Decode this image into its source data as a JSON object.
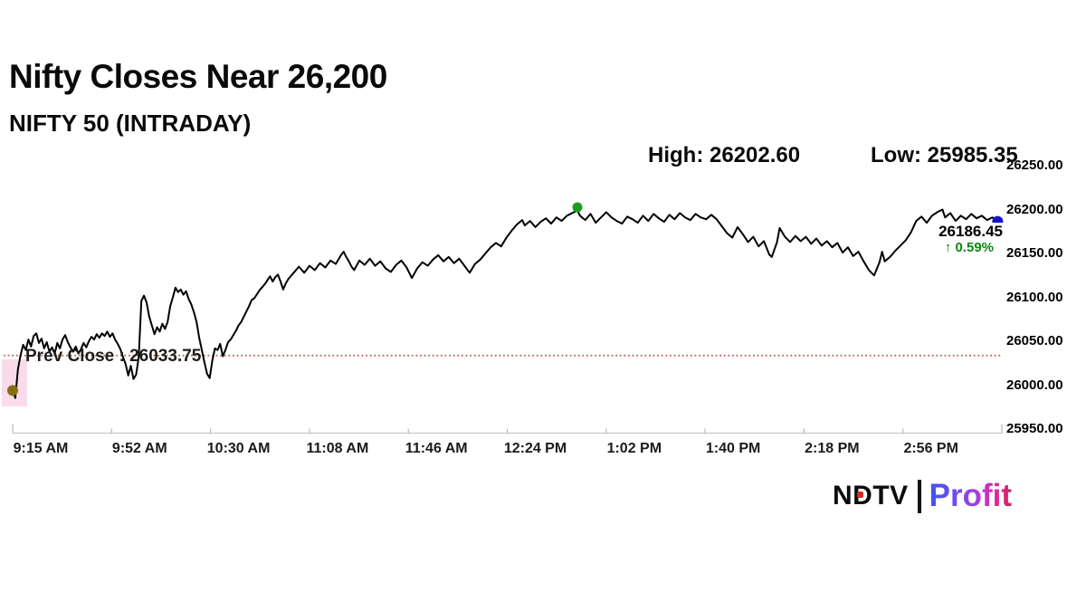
{
  "title": "Nifty Closes Near 26,200",
  "subtitle": "NIFTY 50 (INTRADAY)",
  "stats": {
    "high_label": "High: 26202.60",
    "low_label": "Low: 25985.35"
  },
  "prev_close_label": "Prev Close : 26033.75",
  "last_trade": {
    "price_label": "26186.45",
    "change_label": "↑ 0.59%"
  },
  "logo": {
    "ndtv": "NDTV",
    "profit": "Profit"
  },
  "colors": {
    "line": "#000000",
    "prev_close_line": "#b85f4a",
    "prev_close_text": "#1d1d1d",
    "high_dot": "#1e9c1e",
    "start_dot": "#85700f",
    "end_dot": "#1414cc",
    "change_text": "#0a8a0a",
    "axis": "#c9c9c9",
    "tick": "#b9b9b9",
    "start_highlight": "#f6b8d4",
    "logo_red": "#cf2e21",
    "profit_gradient": [
      "#3d56ee",
      "#7a4af0",
      "#b13ae0",
      "#e8238f",
      "#c22766"
    ]
  },
  "chart_data": {
    "type": "line",
    "title": "NIFTY 50 (INTRADAY)",
    "xlabel": "",
    "ylabel": "",
    "x_unit": "minutes since 9:15 AM",
    "x_tick_labels": [
      "9:15 AM",
      "9:52 AM",
      "10:30 AM",
      "11:08 AM",
      "11:46 AM",
      "12:24 PM",
      "1:02 PM",
      "1:40 PM",
      "2:18 PM",
      "2:56 PM"
    ],
    "y_ticks": [
      26250,
      26200,
      26150,
      26100,
      26050,
      26000,
      25950
    ],
    "y_tick_labels": [
      "26250.00",
      "26200.00",
      "26150.00",
      "26100.00",
      "26050.00",
      "26000.00",
      "25950.00"
    ],
    "ylim": [
      25950,
      26250
    ],
    "xlim_minutes": [
      0,
      376.6
    ],
    "grid": false,
    "legend": false,
    "high": 26202.6,
    "low": 25985.35,
    "prev_close": 26033.75,
    "close": 26186.45,
    "change_pct": 0.59,
    "markers": {
      "start": {
        "min": 0,
        "price": 25994
      },
      "high": {
        "min": 215,
        "price": 26202.6
      },
      "end": {
        "min": 375,
        "price": 26186.45
      }
    },
    "series": [
      {
        "name": "NIFTY 50",
        "points": [
          [
            0,
            25994
          ],
          [
            1,
            25985.35
          ],
          [
            2,
            26018
          ],
          [
            3,
            26034
          ],
          [
            4,
            26046
          ],
          [
            5,
            26040
          ],
          [
            6,
            26052
          ],
          [
            7,
            26044
          ],
          [
            8,
            26056
          ],
          [
            9,
            26059
          ],
          [
            10,
            26048
          ],
          [
            11,
            26053
          ],
          [
            12,
            26042
          ],
          [
            13,
            26049
          ],
          [
            14,
            26038
          ],
          [
            15,
            26043
          ],
          [
            16,
            26036
          ],
          [
            17,
            26048
          ],
          [
            18,
            26042
          ],
          [
            19,
            26052
          ],
          [
            20,
            26057
          ],
          [
            21,
            26049
          ],
          [
            22,
            26043
          ],
          [
            23,
            26038
          ],
          [
            24,
            26044
          ],
          [
            25,
            26036
          ],
          [
            26,
            26041
          ],
          [
            27,
            26048
          ],
          [
            28,
            26043
          ],
          [
            29,
            26050
          ],
          [
            30,
            26055
          ],
          [
            31,
            26052
          ],
          [
            32,
            26058
          ],
          [
            33,
            26054
          ],
          [
            34,
            26059
          ],
          [
            35,
            26056
          ],
          [
            36,
            26061
          ],
          [
            37,
            26055
          ],
          [
            38,
            26059
          ],
          [
            39,
            26052
          ],
          [
            40,
            26047
          ],
          [
            41,
            26041
          ],
          [
            42,
            26032
          ],
          [
            43,
            26024
          ],
          [
            44,
            26011
          ],
          [
            45,
            26022
          ],
          [
            46,
            26007
          ],
          [
            47,
            26012
          ],
          [
            48,
            26032
          ],
          [
            49,
            26096
          ],
          [
            50,
            26102
          ],
          [
            51,
            26094
          ],
          [
            52,
            26078
          ],
          [
            53,
            26068
          ],
          [
            54,
            26058
          ],
          [
            55,
            26066
          ],
          [
            56,
            26061
          ],
          [
            57,
            26070
          ],
          [
            58,
            26064
          ],
          [
            59,
            26072
          ],
          [
            60,
            26090
          ],
          [
            61,
            26100
          ],
          [
            62,
            26111
          ],
          [
            63,
            26106
          ],
          [
            64,
            26109
          ],
          [
            65,
            26103
          ],
          [
            66,
            26107
          ],
          [
            67,
            26098
          ],
          [
            68,
            26092
          ],
          [
            69,
            26083
          ],
          [
            70,
            26072
          ],
          [
            71,
            26054
          ],
          [
            72,
            26040
          ],
          [
            73,
            26026
          ],
          [
            74,
            26013
          ],
          [
            75,
            26008
          ],
          [
            76,
            26028
          ],
          [
            77,
            26042
          ],
          [
            78,
            26040
          ],
          [
            79,
            26047
          ],
          [
            80,
            26033
          ],
          [
            81,
            26040
          ],
          [
            82,
            26049
          ],
          [
            83,
            26052
          ],
          [
            84,
            26057
          ],
          [
            85,
            26062
          ],
          [
            86,
            26068
          ],
          [
            87,
            26072
          ],
          [
            88,
            26078
          ],
          [
            89,
            26084
          ],
          [
            90,
            26090
          ],
          [
            91,
            26097
          ],
          [
            92,
            26099
          ],
          [
            94,
            26108
          ],
          [
            96,
            26115
          ],
          [
            98,
            26124
          ],
          [
            99,
            26118
          ],
          [
            100,
            26123
          ],
          [
            101,
            26126
          ],
          [
            102,
            26118
          ],
          [
            103,
            26109
          ],
          [
            104,
            26116
          ],
          [
            105,
            26121
          ],
          [
            107,
            26128
          ],
          [
            109,
            26135
          ],
          [
            111,
            26128
          ],
          [
            113,
            26136
          ],
          [
            115,
            26131
          ],
          [
            117,
            26139
          ],
          [
            119,
            26134
          ],
          [
            121,
            26142
          ],
          [
            123,
            26138
          ],
          [
            125,
            26148
          ],
          [
            126,
            26152
          ],
          [
            127,
            26146
          ],
          [
            128,
            26141
          ],
          [
            129,
            26135
          ],
          [
            130,
            26131
          ],
          [
            132,
            26142
          ],
          [
            134,
            26137
          ],
          [
            136,
            26144
          ],
          [
            138,
            26136
          ],
          [
            140,
            26141
          ],
          [
            142,
            26133
          ],
          [
            144,
            26129
          ],
          [
            146,
            26137
          ],
          [
            148,
            26142
          ],
          [
            150,
            26134
          ],
          [
            152,
            26122
          ],
          [
            154,
            26133
          ],
          [
            156,
            26140
          ],
          [
            158,
            26136
          ],
          [
            160,
            26143
          ],
          [
            162,
            26148
          ],
          [
            164,
            26141
          ],
          [
            166,
            26146
          ],
          [
            168,
            26139
          ],
          [
            170,
            26144
          ],
          [
            172,
            26136
          ],
          [
            174,
            26128
          ],
          [
            176,
            26138
          ],
          [
            178,
            26143
          ],
          [
            180,
            26150
          ],
          [
            182,
            26157
          ],
          [
            184,
            26162
          ],
          [
            186,
            26158
          ],
          [
            188,
            26168
          ],
          [
            190,
            26176
          ],
          [
            192,
            26183
          ],
          [
            194,
            26188
          ],
          [
            195,
            26182
          ],
          [
            197,
            26187
          ],
          [
            199,
            26180
          ],
          [
            201,
            26186
          ],
          [
            203,
            26190
          ],
          [
            205,
            26184
          ],
          [
            207,
            26191
          ],
          [
            209,
            26187
          ],
          [
            211,
            26193
          ],
          [
            213,
            26196
          ],
          [
            215,
            26199
          ],
          [
            216,
            26193
          ],
          [
            218,
            26188
          ],
          [
            220,
            26195
          ],
          [
            222,
            26185
          ],
          [
            224,
            26191
          ],
          [
            226,
            26197
          ],
          [
            228,
            26191
          ],
          [
            230,
            26187
          ],
          [
            232,
            26184
          ],
          [
            234,
            26192
          ],
          [
            236,
            26189
          ],
          [
            238,
            26185
          ],
          [
            240,
            26193
          ],
          [
            242,
            26187
          ],
          [
            244,
            26195
          ],
          [
            246,
            26190
          ],
          [
            248,
            26186
          ],
          [
            250,
            26194
          ],
          [
            252,
            26189
          ],
          [
            254,
            26196
          ],
          [
            256,
            26191
          ],
          [
            258,
            26188
          ],
          [
            260,
            26195
          ],
          [
            262,
            26191
          ],
          [
            264,
            26189
          ],
          [
            266,
            26194
          ],
          [
            268,
            26189
          ],
          [
            270,
            26181
          ],
          [
            272,
            26173
          ],
          [
            274,
            26168
          ],
          [
            276,
            26180
          ],
          [
            278,
            26172
          ],
          [
            280,
            26163
          ],
          [
            282,
            26169
          ],
          [
            284,
            26158
          ],
          [
            286,
            26164
          ],
          [
            288,
            26149
          ],
          [
            289,
            26146
          ],
          [
            291,
            26163
          ],
          [
            292,
            26179
          ],
          [
            294,
            26169
          ],
          [
            296,
            26163
          ],
          [
            298,
            26170
          ],
          [
            300,
            26164
          ],
          [
            302,
            26169
          ],
          [
            304,
            26161
          ],
          [
            306,
            26167
          ],
          [
            308,
            26159
          ],
          [
            310,
            26164
          ],
          [
            312,
            26157
          ],
          [
            314,
            26162
          ],
          [
            316,
            26151
          ],
          [
            318,
            26157
          ],
          [
            320,
            26147
          ],
          [
            322,
            26152
          ],
          [
            324,
            26141
          ],
          [
            326,
            26131
          ],
          [
            328,
            26125
          ],
          [
            330,
            26140
          ],
          [
            331,
            26152
          ],
          [
            332,
            26141
          ],
          [
            334,
            26146
          ],
          [
            336,
            26153
          ],
          [
            338,
            26159
          ],
          [
            340,
            26165
          ],
          [
            342,
            26174
          ],
          [
            344,
            26187
          ],
          [
            346,
            26192
          ],
          [
            348,
            26185
          ],
          [
            350,
            26193
          ],
          [
            352,
            26197
          ],
          [
            354,
            26200
          ],
          [
            355,
            26191
          ],
          [
            357,
            26196
          ],
          [
            359,
            26187
          ],
          [
            361,
            26193
          ],
          [
            363,
            26189
          ],
          [
            365,
            26195
          ],
          [
            367,
            26190
          ],
          [
            369,
            26193
          ],
          [
            371,
            26188
          ],
          [
            373,
            26191
          ],
          [
            375,
            26186.45
          ]
        ]
      }
    ]
  }
}
